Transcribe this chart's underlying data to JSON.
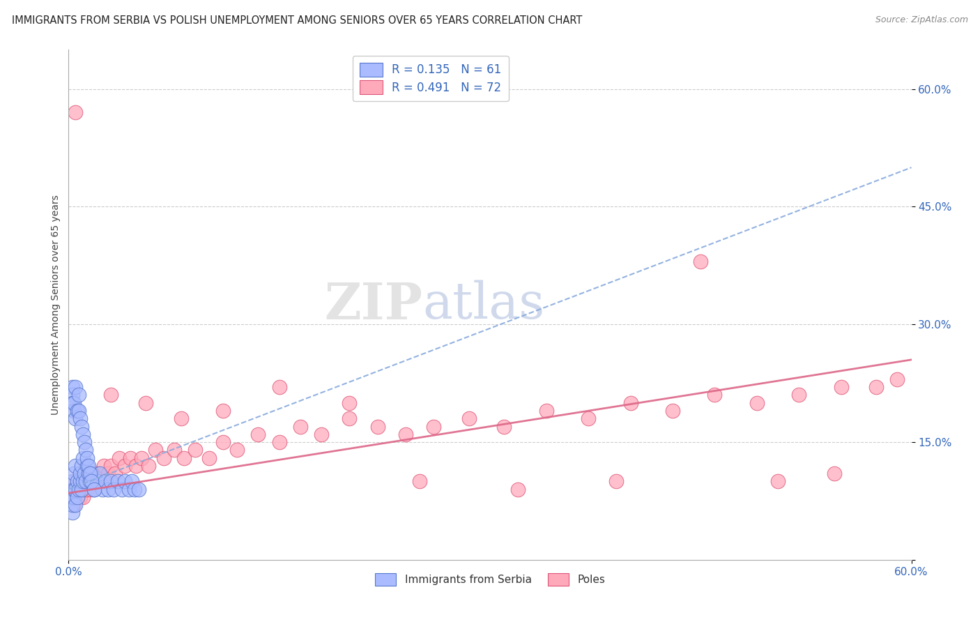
{
  "title": "IMMIGRANTS FROM SERBIA VS POLISH UNEMPLOYMENT AMONG SENIORS OVER 65 YEARS CORRELATION CHART",
  "source": "Source: ZipAtlas.com",
  "ylabel": "Unemployment Among Seniors over 65 years",
  "legend_label1": "Immigrants from Serbia",
  "legend_label2": "Poles",
  "R1": 0.135,
  "N1": 61,
  "R2": 0.491,
  "N2": 72,
  "color1_fill": "#aabbff",
  "color1_edge": "#5577cc",
  "color2_fill": "#ffaabb",
  "color2_edge": "#dd5577",
  "line1_color": "#88aadd",
  "line2_color": "#dd6688",
  "xlim": [
    0.0,
    0.6
  ],
  "ylim": [
    0.0,
    0.65
  ],
  "yticks": [
    0.0,
    0.15,
    0.3,
    0.45,
    0.6
  ],
  "ytick_labels": [
    "",
    "15.0%",
    "30.0%",
    "45.0%",
    "60.0%"
  ],
  "xticks": [
    0.0,
    0.6
  ],
  "xtick_labels": [
    "0.0%",
    "60.0%"
  ],
  "watermark_zip": "ZIP",
  "watermark_atlas": "atlas",
  "serbia_x": [
    0.003,
    0.003,
    0.003,
    0.003,
    0.003,
    0.004,
    0.004,
    0.004,
    0.005,
    0.005,
    0.005,
    0.006,
    0.006,
    0.007,
    0.008,
    0.008,
    0.009,
    0.009,
    0.01,
    0.01,
    0.011,
    0.012,
    0.013,
    0.014,
    0.015,
    0.016,
    0.018,
    0.02,
    0.022,
    0.024,
    0.026,
    0.028,
    0.03,
    0.032,
    0.035,
    0.038,
    0.04,
    0.043,
    0.045,
    0.047,
    0.05,
    0.003,
    0.003,
    0.003,
    0.004,
    0.004,
    0.005,
    0.005,
    0.006,
    0.007,
    0.007,
    0.008,
    0.009,
    0.01,
    0.011,
    0.012,
    0.013,
    0.014,
    0.015,
    0.016,
    0.018
  ],
  "serbia_y": [
    0.06,
    0.07,
    0.08,
    0.09,
    0.1,
    0.08,
    0.09,
    0.11,
    0.07,
    0.09,
    0.12,
    0.08,
    0.1,
    0.09,
    0.1,
    0.11,
    0.09,
    0.12,
    0.1,
    0.13,
    0.11,
    0.1,
    0.12,
    0.11,
    0.1,
    0.11,
    0.09,
    0.1,
    0.11,
    0.09,
    0.1,
    0.09,
    0.1,
    0.09,
    0.1,
    0.09,
    0.1,
    0.09,
    0.1,
    0.09,
    0.09,
    0.22,
    0.21,
    0.2,
    0.19,
    0.2,
    0.18,
    0.22,
    0.19,
    0.21,
    0.19,
    0.18,
    0.17,
    0.16,
    0.15,
    0.14,
    0.13,
    0.12,
    0.11,
    0.1,
    0.09
  ],
  "poles_x": [
    0.003,
    0.003,
    0.004,
    0.004,
    0.005,
    0.005,
    0.006,
    0.007,
    0.008,
    0.009,
    0.01,
    0.011,
    0.012,
    0.013,
    0.014,
    0.015,
    0.016,
    0.017,
    0.018,
    0.02,
    0.022,
    0.025,
    0.028,
    0.03,
    0.033,
    0.036,
    0.04,
    0.044,
    0.048,
    0.052,
    0.057,
    0.062,
    0.068,
    0.075,
    0.082,
    0.09,
    0.1,
    0.11,
    0.12,
    0.135,
    0.15,
    0.165,
    0.18,
    0.2,
    0.22,
    0.24,
    0.26,
    0.285,
    0.31,
    0.34,
    0.37,
    0.4,
    0.43,
    0.46,
    0.49,
    0.52,
    0.55,
    0.575,
    0.59,
    0.005,
    0.03,
    0.055,
    0.08,
    0.11,
    0.15,
    0.2,
    0.25,
    0.32,
    0.39,
    0.45,
    0.505,
    0.545
  ],
  "poles_y": [
    0.08,
    0.09,
    0.07,
    0.1,
    0.08,
    0.09,
    0.08,
    0.09,
    0.08,
    0.09,
    0.08,
    0.09,
    0.1,
    0.09,
    0.1,
    0.1,
    0.09,
    0.11,
    0.1,
    0.11,
    0.1,
    0.12,
    0.11,
    0.12,
    0.11,
    0.13,
    0.12,
    0.13,
    0.12,
    0.13,
    0.12,
    0.14,
    0.13,
    0.14,
    0.13,
    0.14,
    0.13,
    0.15,
    0.14,
    0.16,
    0.15,
    0.17,
    0.16,
    0.18,
    0.17,
    0.16,
    0.17,
    0.18,
    0.17,
    0.19,
    0.18,
    0.2,
    0.19,
    0.21,
    0.2,
    0.21,
    0.22,
    0.22,
    0.23,
    0.57,
    0.21,
    0.2,
    0.18,
    0.19,
    0.22,
    0.2,
    0.1,
    0.09,
    0.1,
    0.38,
    0.1,
    0.11
  ],
  "trendline1_x0": 0.0,
  "trendline1_y0": 0.09,
  "trendline1_x1": 0.6,
  "trendline1_y1": 0.5,
  "trendline2_x0": 0.0,
  "trendline2_y0": 0.085,
  "trendline2_x1": 0.6,
  "trendline2_y1": 0.255
}
